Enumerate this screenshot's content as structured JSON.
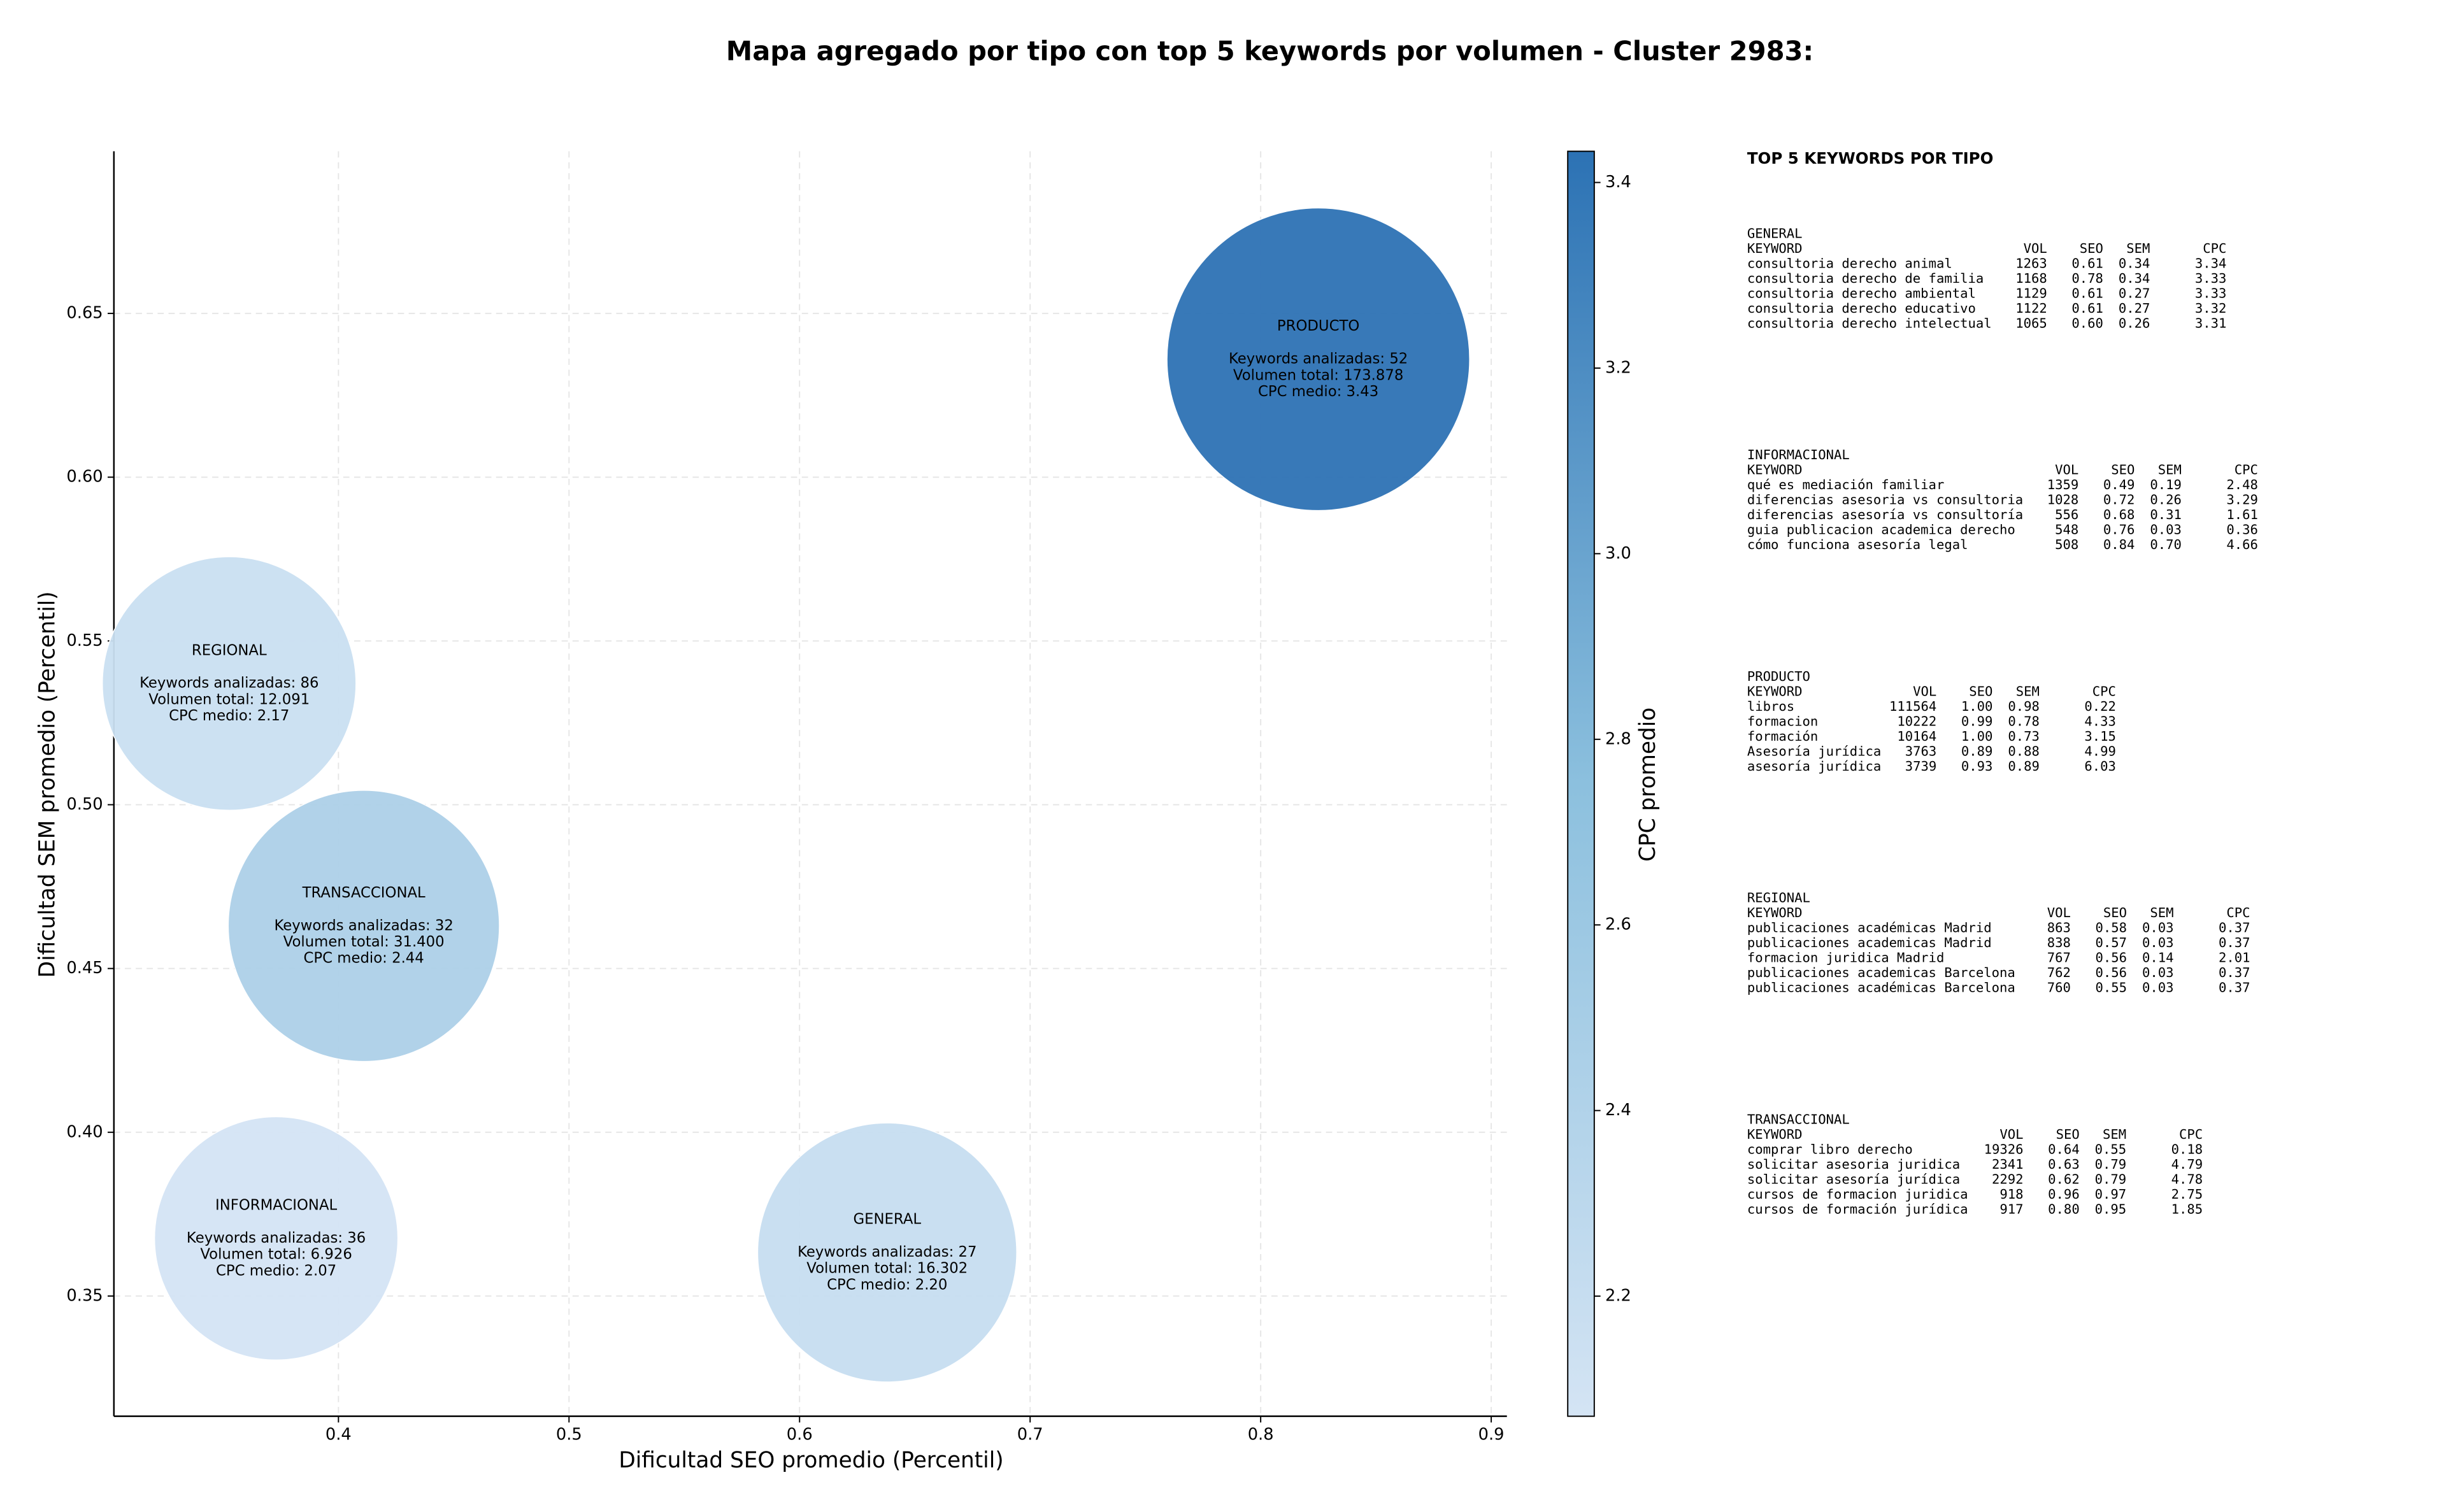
{
  "chart_data": {
    "type": "bubble",
    "title": "Mapa agregado por tipo con top 5 keywords por volumen - Cluster 2983:",
    "xlabel": "Dificultad SEO promedio (Percentil)",
    "ylabel": "Dificultad SEM promedio (Percentil)",
    "xlim": [
      0.3026,
      0.9068
    ],
    "ylim": [
      0.3133,
      0.6995
    ],
    "xticks": [
      0.4,
      0.5,
      0.6,
      0.7,
      0.8,
      0.9
    ],
    "yticks": [
      0.35,
      {
        "value": 0.4,
        "label": "0.40"
      },
      0.45,
      {
        "value": 0.5,
        "label": "0.50"
      },
      0.55,
      {
        "value": 0.6,
        "label": "0.60"
      },
      0.65
    ],
    "grid": true,
    "points": [
      {
        "name": "PRODUCTO",
        "x": 0.825,
        "y": 0.636,
        "size": 173878,
        "cpc": 3.43,
        "lines": [
          "Keywords analizadas: 52",
          "Volumen total: 173.878",
          "CPC medio: 3.43"
        ]
      },
      {
        "name": "REGIONAL",
        "x": 0.3526,
        "y": 0.537,
        "size": 12091,
        "cpc": 2.17,
        "lines": [
          "Keywords analizadas: 86",
          "Volumen total: 12.091",
          "CPC medio: 2.17"
        ]
      },
      {
        "name": "TRANSACCIONAL",
        "x": 0.411,
        "y": 0.463,
        "size": 31400,
        "cpc": 2.44,
        "lines": [
          "Keywords analizadas: 32",
          "Volumen total: 31.400",
          "CPC medio: 2.44"
        ]
      },
      {
        "name": "INFORMACIONAL",
        "x": 0.373,
        "y": 0.3676,
        "size": 6926,
        "cpc": 2.07,
        "lines": [
          "Keywords analizadas: 36",
          "Volumen total: 6.926",
          "CPC medio: 2.07"
        ]
      },
      {
        "name": "GENERAL",
        "x": 0.638,
        "y": 0.3633,
        "size": 16302,
        "cpc": 2.2,
        "lines": [
          "Keywords analizadas: 27",
          "Volumen total: 16.302",
          "CPC medio: 2.20"
        ]
      }
    ],
    "colorbar": {
      "label": "CPC promedio",
      "clim": [
        2.0706,
        3.4336
      ],
      "ticks": [
        2.2,
        2.4,
        2.6,
        2.8,
        {
          "value": 3,
          "label": "3.0"
        },
        3.2,
        3.4
      ],
      "colors": [
        "#d4e4f4",
        "#8cc0de",
        "#2c72b4"
      ]
    }
  },
  "side_panel": {
    "title": "TOP 5 KEYWORDS POR TIPO",
    "sections": [
      {
        "name": "GENERAL",
        "columns": [
          "KEYWORD",
          "VOL",
          "SEO",
          "SEM",
          "CPC"
        ],
        "rows": [
          [
            "consultoria derecho animal",
            "1263",
            "0.61",
            "0.34",
            "3.34"
          ],
          [
            "consultoria derecho de familia",
            "1168",
            "0.78",
            "0.34",
            "3.33"
          ],
          [
            "consultoria derecho ambiental",
            "1129",
            "0.61",
            "0.27",
            "3.33"
          ],
          [
            "consultoria derecho educativo",
            "1122",
            "0.61",
            "0.27",
            "3.32"
          ],
          [
            "consultoria derecho intelectual",
            "1065",
            "0.60",
            "0.26",
            "3.31"
          ]
        ]
      },
      {
        "name": "INFORMACIONAL",
        "columns": [
          "KEYWORD",
          "VOL",
          "SEO",
          "SEM",
          "CPC"
        ],
        "rows": [
          [
            "qué es mediación familiar",
            "1359",
            "0.49",
            "0.19",
            "2.48"
          ],
          [
            "diferencias asesoria vs consultoria",
            "1028",
            "0.72",
            "0.26",
            "3.29"
          ],
          [
            "diferencias asesoría vs consultoría",
            "556",
            "0.68",
            "0.31",
            "1.61"
          ],
          [
            "guia publicacion academica derecho",
            "548",
            "0.76",
            "0.03",
            "0.36"
          ],
          [
            "cómo funciona asesoría legal",
            "508",
            "0.84",
            "0.70",
            "4.66"
          ]
        ]
      },
      {
        "name": "PRODUCTO",
        "columns": [
          "KEYWORD",
          "VOL",
          "SEO",
          "SEM",
          "CPC"
        ],
        "rows": [
          [
            "libros",
            "111564",
            "1.00",
            "0.98",
            "0.22"
          ],
          [
            "formacion",
            "10222",
            "0.99",
            "0.78",
            "4.33"
          ],
          [
            "formación",
            "10164",
            "1.00",
            "0.73",
            "3.15"
          ],
          [
            "Asesoría jurídica",
            "3763",
            "0.89",
            "0.88",
            "4.99"
          ],
          [
            "asesoría jurídica",
            "3739",
            "0.93",
            "0.89",
            "6.03"
          ]
        ]
      },
      {
        "name": "REGIONAL",
        "columns": [
          "KEYWORD",
          "VOL",
          "SEO",
          "SEM",
          "CPC"
        ],
        "rows": [
          [
            "publicaciones académicas Madrid",
            "863",
            "0.58",
            "0.03",
            "0.37"
          ],
          [
            "publicaciones academicas Madrid",
            "838",
            "0.57",
            "0.03",
            "0.37"
          ],
          [
            "formacion juridica Madrid",
            "767",
            "0.56",
            "0.14",
            "2.01"
          ],
          [
            "publicaciones academicas Barcelona",
            "762",
            "0.56",
            "0.03",
            "0.37"
          ],
          [
            "publicaciones académicas Barcelona",
            "760",
            "0.55",
            "0.03",
            "0.37"
          ]
        ]
      },
      {
        "name": "TRANSACCIONAL",
        "columns": [
          "KEYWORD",
          "VOL",
          "SEO",
          "SEM",
          "CPC"
        ],
        "rows": [
          [
            "comprar libro derecho",
            "19326",
            "0.64",
            "0.55",
            "0.18"
          ],
          [
            "solicitar asesoria juridica",
            "2341",
            "0.63",
            "0.79",
            "4.79"
          ],
          [
            "solicitar asesoría jurídica",
            "2292",
            "0.62",
            "0.79",
            "4.78"
          ],
          [
            "cursos de formacion juridica",
            "918",
            "0.96",
            "0.97",
            "2.75"
          ],
          [
            "cursos de formación jurídica",
            "917",
            "0.80",
            "0.95",
            "1.85"
          ]
        ]
      }
    ]
  }
}
